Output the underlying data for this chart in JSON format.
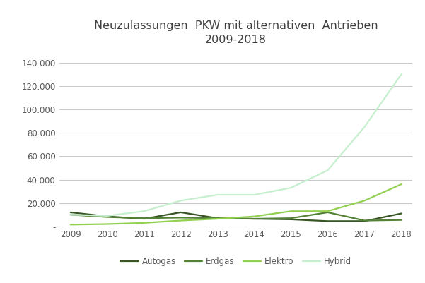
{
  "title": "Neuzulassungen  PKW mit alternativen  Antrieben\n2009-2018",
  "years": [
    2009,
    2010,
    2011,
    2012,
    2013,
    2014,
    2015,
    2016,
    2017,
    2018
  ],
  "series": {
    "Autogas": {
      "values": [
        12000,
        8500,
        6500,
        12000,
        7000,
        6500,
        6000,
        4500,
        4500,
        11000
      ],
      "color": "#375623",
      "linewidth": 1.6
    },
    "Erdgas": {
      "values": [
        10000,
        8000,
        7000,
        7500,
        7000,
        6500,
        7000,
        12000,
        5000,
        5500
      ],
      "color": "#538135",
      "linewidth": 1.6
    },
    "Elektro": {
      "values": [
        1500,
        2000,
        3000,
        5000,
        6500,
        8500,
        13000,
        13000,
        22000,
        36000
      ],
      "color": "#92d050",
      "linewidth": 1.6
    },
    "Hybrid": {
      "values": [
        10000,
        9000,
        13000,
        22000,
        27000,
        27000,
        33000,
        48000,
        85000,
        130000
      ],
      "color": "#c6efce",
      "linewidth": 1.6
    }
  },
  "ylim": [
    0,
    150000
  ],
  "yticks": [
    0,
    20000,
    40000,
    60000,
    80000,
    100000,
    120000,
    140000
  ],
  "ytick_labels": [
    "-",
    "20.000",
    "40.000",
    "60.000",
    "80.000",
    "100.000",
    "120.000",
    "140.000"
  ],
  "background_color": "#ffffff",
  "grid_color": "#c8c8c8",
  "title_color": "#404040",
  "tick_color": "#595959",
  "title_fontsize": 11.5,
  "tick_fontsize": 8.5
}
